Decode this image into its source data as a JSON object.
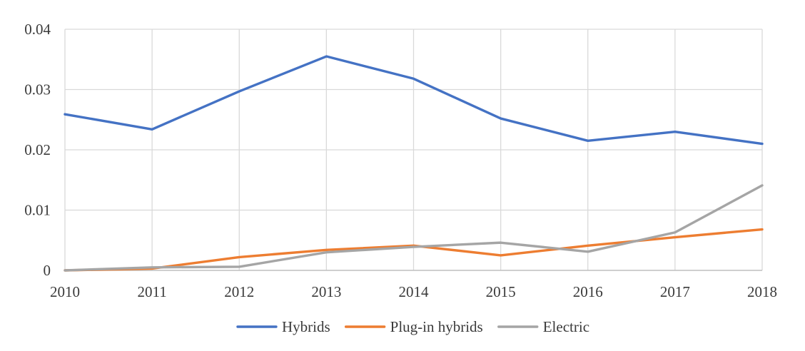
{
  "chart_data": {
    "type": "line",
    "title": "",
    "xlabel": "",
    "ylabel": "",
    "categories": [
      "2010",
      "2011",
      "2012",
      "2013",
      "2014",
      "2015",
      "2016",
      "2017",
      "2018"
    ],
    "ylim": [
      0,
      0.04
    ],
    "yticks": [
      {
        "value": 0,
        "label": "0"
      },
      {
        "value": 0.01,
        "label": "0.01"
      },
      {
        "value": 0.02,
        "label": "0.02"
      },
      {
        "value": 0.03,
        "label": "0.03"
      },
      {
        "value": 0.04,
        "label": "0.04"
      }
    ],
    "grid": true,
    "legend_position": "bottom",
    "series": [
      {
        "name": "Hybrids",
        "color": "#4472c4",
        "values": [
          0.0259,
          0.0234,
          0.0297,
          0.0355,
          0.0318,
          0.0252,
          0.0215,
          0.023,
          0.021
        ]
      },
      {
        "name": "Plug-in hybrids",
        "color": "#ed7d31",
        "values": [
          0.0,
          0.0003,
          0.0022,
          0.0034,
          0.0041,
          0.0025,
          0.0041,
          0.0055,
          0.0068
        ]
      },
      {
        "name": "Electric",
        "color": "#a5a5a5",
        "values": [
          0.0,
          0.0005,
          0.0006,
          0.003,
          0.0039,
          0.0046,
          0.0031,
          0.0063,
          0.0141
        ]
      }
    ]
  }
}
